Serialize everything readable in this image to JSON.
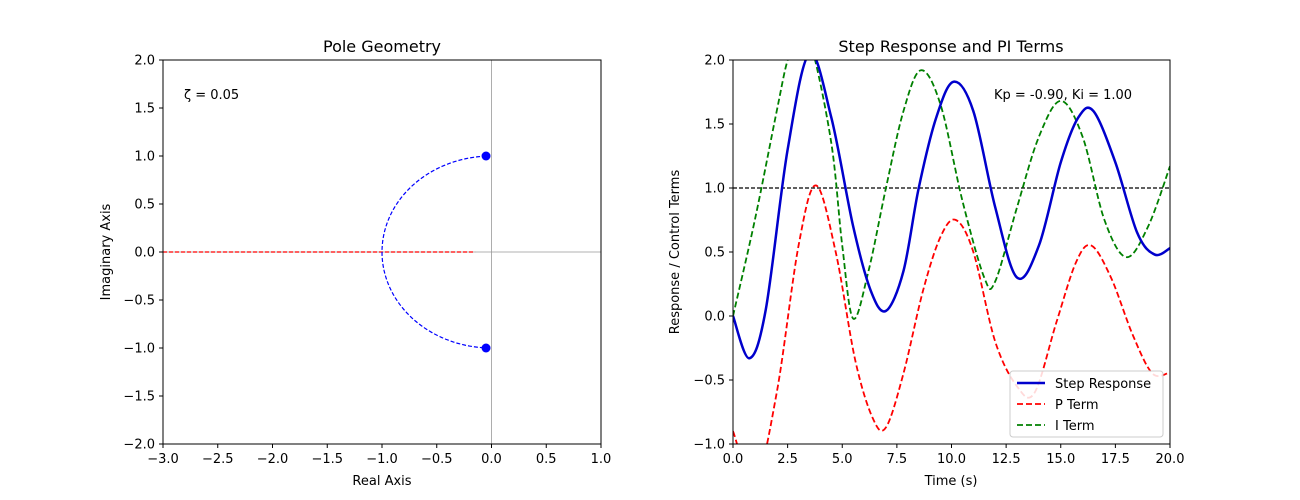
{
  "chart_data": [
    {
      "type": "scatter",
      "title": "Pole Geometry",
      "xlabel": "Real Axis",
      "ylabel": "Imaginary Axis",
      "xlim": [
        -3.0,
        1.0
      ],
      "ylim": [
        -2.0,
        2.0
      ],
      "xticks": [
        -3.0,
        -2.5,
        -2.0,
        -1.5,
        -1.0,
        -0.5,
        0.0,
        0.5,
        1.0
      ],
      "xtick_labels": [
        "−3.0",
        "−2.5",
        "−2.0",
        "−1.5",
        "−1.0",
        "−0.5",
        "0.0",
        "0.5",
        "1.0"
      ],
      "yticks": [
        -2.0,
        -1.5,
        -1.0,
        -0.5,
        0.0,
        0.5,
        1.0,
        1.5,
        2.0
      ],
      "ytick_labels": [
        "−2.0",
        "−1.5",
        "−1.0",
        "−0.5",
        "0.0",
        "0.5",
        "1.0",
        "1.5",
        "2.0"
      ],
      "grid": false,
      "annotation": "ζ = 0.05",
      "poles": [
        {
          "re": -0.05,
          "im": 1.0
        },
        {
          "re": -0.05,
          "im": -1.0
        }
      ],
      "pole_color": "#0000ff",
      "damping_arc": {
        "radius": 1.0,
        "color": "#0000ff"
      },
      "real_axis_segment": {
        "from": -3.0,
        "to": -0.15,
        "color": "#ff0000"
      },
      "reference_lines": {
        "x": 0.0,
        "y": 0.0,
        "color": "#999999"
      }
    },
    {
      "type": "line",
      "title": "Step Response and PI Terms",
      "xlabel": "Time (s)",
      "ylabel": "Response / Control Terms",
      "xlim": [
        0.0,
        20.0
      ],
      "ylim": [
        -1.0,
        2.0
      ],
      "xticks": [
        0.0,
        2.5,
        5.0,
        7.5,
        10.0,
        12.5,
        15.0,
        17.5,
        20.0
      ],
      "xtick_labels": [
        "0.0",
        "2.5",
        "5.0",
        "7.5",
        "10.0",
        "12.5",
        "15.0",
        "17.5",
        "20.0"
      ],
      "yticks": [
        -1.0,
        -0.5,
        0.0,
        0.5,
        1.0,
        1.5,
        2.0
      ],
      "ytick_labels": [
        "−1.0",
        "−0.5",
        "0.0",
        "0.5",
        "1.0",
        "1.5",
        "2.0"
      ],
      "grid": false,
      "annotation": "Kp = -0.90, Ki = 1.00",
      "reference_line": {
        "y": 1.0,
        "color": "#000000"
      },
      "legend_position": "lower-right",
      "series": [
        {
          "name": "Step Response",
          "color": "#0000cc",
          "style": "solid",
          "x": [
            0.0,
            0.75,
            1.5,
            2.5,
            3.5,
            4.5,
            5.5,
            6.3,
            7.0,
            7.8,
            8.5,
            9.3,
            10.1,
            11.0,
            12.0,
            13.0,
            14.0,
            15.0,
            15.8,
            16.5,
            17.5,
            18.5,
            19.3,
            20.0
          ],
          "values": [
            0.0,
            -0.33,
            0.05,
            1.3,
            2.05,
            1.55,
            0.7,
            0.2,
            0.04,
            0.35,
            1.0,
            1.55,
            1.83,
            1.6,
            0.85,
            0.3,
            0.55,
            1.2,
            1.55,
            1.6,
            1.2,
            0.65,
            0.48,
            0.53
          ]
        },
        {
          "name": "P Term",
          "color": "#ff0000",
          "style": "dashed",
          "x": [
            0.0,
            1.0,
            2.0,
            3.0,
            3.8,
            4.7,
            5.6,
            6.4,
            7.0,
            7.8,
            8.7,
            9.5,
            10.2,
            11.0,
            12.0,
            13.0,
            13.8,
            14.8,
            15.7,
            16.4,
            17.3,
            18.3,
            19.2,
            20.0
          ],
          "values": [
            -0.9,
            -1.3,
            -0.6,
            0.55,
            1.02,
            0.5,
            -0.35,
            -0.8,
            -0.87,
            -0.45,
            0.2,
            0.62,
            0.75,
            0.5,
            -0.2,
            -0.55,
            -0.6,
            -0.05,
            0.42,
            0.55,
            0.3,
            -0.15,
            -0.45,
            -0.44
          ]
        },
        {
          "name": "I Term",
          "color": "#008000",
          "style": "dashed",
          "x": [
            0.0,
            1.0,
            2.0,
            2.5,
            3.0,
            3.6,
            4.5,
            5.0,
            5.5,
            6.2,
            7.0,
            7.8,
            8.6,
            9.5,
            10.5,
            11.5,
            12.0,
            13.0,
            14.0,
            15.0,
            16.0,
            17.0,
            18.0,
            19.0,
            20.0
          ],
          "values": [
            0.0,
            0.75,
            1.6,
            2.0,
            2.2,
            2.1,
            1.35,
            0.55,
            -0.02,
            0.35,
            1.0,
            1.6,
            1.92,
            1.65,
            0.9,
            0.3,
            0.27,
            0.85,
            1.4,
            1.68,
            1.4,
            0.75,
            0.46,
            0.7,
            1.17
          ]
        }
      ]
    }
  ]
}
